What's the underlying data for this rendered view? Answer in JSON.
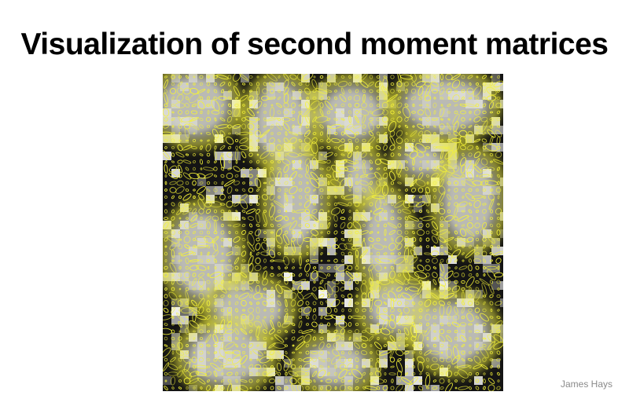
{
  "slide": {
    "title": "Visualization of second moment matrices",
    "credit": "James Hays"
  },
  "figure": {
    "description_icon": "ellipse-field-image",
    "colors": {
      "ellipse": "#f4f238",
      "dark": "#111111",
      "light": "#d9d9d9"
    }
  }
}
